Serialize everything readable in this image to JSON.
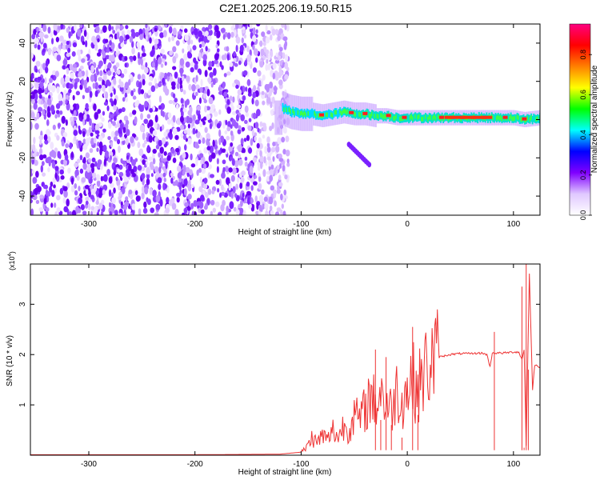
{
  "title": "C2E1.2025.206.19.50.R15",
  "chart_data": [
    {
      "type": "heatmap",
      "xlabel": "Height of straight line (km)",
      "ylabel": "Frequency (Hz)",
      "xlim": [
        -355,
        125
      ],
      "ylim": [
        -50,
        50
      ],
      "xticks": [
        -300,
        -200,
        -100,
        0,
        100
      ],
      "yticks": [
        -40,
        -20,
        0,
        20,
        40
      ],
      "colorbar": {
        "label": "Normalized spectral amplitude",
        "range": [
          0,
          1
        ],
        "ticks": [
          "0.0",
          "0.2",
          "0.4",
          "0.6",
          "0.8"
        ],
        "colors": [
          "#ffffff",
          "#e0c8ff",
          "#8000ff",
          "#0000ff",
          "#00ffff",
          "#00ff00",
          "#ffff00",
          "#ff8000",
          "#ff0000",
          "#ff0080"
        ]
      },
      "signal": {
        "noise_region_x": [
          -355,
          -118
        ],
        "band_center_freq": [
          [
            -118,
            6
          ],
          [
            -110,
            4
          ],
          [
            -100,
            3
          ],
          [
            -90,
            3
          ],
          [
            -80,
            2
          ],
          [
            -70,
            3
          ],
          [
            -60,
            4
          ],
          [
            -50,
            3
          ],
          [
            -40,
            3
          ],
          [
            -30,
            2
          ],
          [
            -20,
            2
          ],
          [
            -10,
            1
          ],
          [
            0,
            1
          ],
          [
            20,
            1
          ],
          [
            40,
            1
          ],
          [
            60,
            1
          ],
          [
            80,
            1
          ],
          [
            100,
            1
          ],
          [
            110,
            0
          ],
          [
            125,
            1
          ]
        ],
        "side_branch": [
          [
            -55,
            -13
          ],
          [
            -35,
            -24
          ]
        ]
      }
    },
    {
      "type": "line",
      "xlabel": "Height of straight line (km)",
      "ylabel": "SNR (10 * v/v)",
      "y_multiplier": "(x10",
      "y_multiplier_exp": "4",
      "y_multiplier_close": ")",
      "xlim": [
        -355,
        125
      ],
      "ylim": [
        0,
        3.8
      ],
      "xticks": [
        -300,
        -200,
        -100,
        0,
        100
      ],
      "yticks": [
        1,
        2,
        3
      ],
      "series_color": "#ee3333",
      "x": [
        -355,
        -300,
        -200,
        -120,
        -100,
        -95,
        -90,
        -85,
        -80,
        -75,
        -70,
        -65,
        -60,
        -55,
        -50,
        -45,
        -40,
        -35,
        -30,
        -25,
        -20,
        -15,
        -10,
        -5,
        0,
        5,
        10,
        15,
        20,
        25,
        30,
        40,
        50,
        60,
        70,
        75,
        78,
        80,
        90,
        100,
        105,
        108,
        110,
        112,
        115,
        118,
        120,
        125
      ],
      "y": [
        0.01,
        0.01,
        0.01,
        0.02,
        0.06,
        0.15,
        0.35,
        0.25,
        0.4,
        0.3,
        0.5,
        0.35,
        0.6,
        0.5,
        0.8,
        0.7,
        0.9,
        1.2,
        1.0,
        1.3,
        1.0,
        0.9,
        1.3,
        1.1,
        1.3,
        1.5,
        1.3,
        1.6,
        1.8,
        1.9,
        1.95,
        2.0,
        2.02,
        2.02,
        2.03,
        2.0,
        1.75,
        2.03,
        2.03,
        2.05,
        2.05,
        1.9,
        2.1,
        0.2,
        3.6,
        1.3,
        1.8,
        1.75
      ],
      "spikes": [
        [
          -30,
          2.1
        ],
        [
          -25,
          0.7
        ],
        [
          -20,
          1.95
        ],
        [
          -15,
          0.6
        ],
        [
          -5,
          0.35
        ],
        [
          5,
          2.55
        ],
        [
          10,
          0.8
        ],
        [
          82,
          2.45
        ],
        [
          108,
          3.35
        ],
        [
          110,
          0.15
        ],
        [
          112,
          3.8
        ],
        [
          114,
          1.7
        ]
      ]
    }
  ]
}
